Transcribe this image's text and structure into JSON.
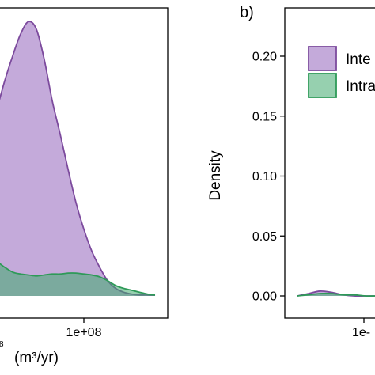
{
  "figure": {
    "panel_b_tag": "b)",
    "legend": {
      "entries": [
        {
          "label": "Inte",
          "color": "#a881c9"
        },
        {
          "label": "Intra",
          "color": "#3fa96e"
        }
      ]
    }
  },
  "chart_data": [
    {
      "type": "area",
      "panel": "a",
      "xlabel": "(m³/yr)",
      "ylabel": "",
      "x_tick_labels": [
        "1e+08"
      ],
      "x_tick_values": [
        100000000
      ],
      "xlim": [
        -30000000,
        210000000
      ],
      "ylim": [
        0,
        0.29
      ],
      "grid": false,
      "series": [
        {
          "name": "Inte",
          "color": "#a881c9",
          "x": [
            -30000000,
            -20000000,
            -10000000,
            0,
            10000000,
            20000000,
            30000000,
            40000000,
            50000000,
            60000000,
            70000000,
            80000000,
            90000000,
            100000000,
            110000000,
            120000000,
            130000000,
            140000000,
            150000000,
            160000000,
            170000000,
            180000000,
            190000000
          ],
          "values": [
            0.14,
            0.168,
            0.196,
            0.226,
            0.252,
            0.275,
            0.288,
            0.28,
            0.248,
            0.205,
            0.17,
            0.133,
            0.098,
            0.07,
            0.047,
            0.03,
            0.016,
            0.008,
            0.004,
            0.002,
            0.001,
            0.001,
            0.0
          ]
        },
        {
          "name": "Intra",
          "color": "#3fa96e",
          "x": [
            -30000000,
            -20000000,
            -10000000,
            0,
            10000000,
            20000000,
            30000000,
            40000000,
            50000000,
            60000000,
            70000000,
            80000000,
            90000000,
            100000000,
            110000000,
            120000000,
            130000000,
            140000000,
            150000000,
            160000000,
            170000000,
            180000000,
            190000000
          ],
          "values": [
            0.038,
            0.04,
            0.036,
            0.03,
            0.025,
            0.023,
            0.022,
            0.021,
            0.022,
            0.023,
            0.023,
            0.024,
            0.024,
            0.023,
            0.022,
            0.02,
            0.016,
            0.011,
            0.008,
            0.006,
            0.004,
            0.002,
            0.001
          ]
        }
      ]
    },
    {
      "type": "area",
      "panel": "b",
      "xlabel": "",
      "ylabel": "Density",
      "y_ticks": [
        0.0,
        0.05,
        0.1,
        0.15,
        0.2
      ],
      "y_tick_labels": [
        "0.00",
        "0.05",
        "0.10",
        "0.15",
        "0.20"
      ],
      "x_tick_labels": [
        "1e-"
      ],
      "ylim": [
        -0.01,
        0.25
      ],
      "grid": false,
      "legend_position": "top-right",
      "series": [
        {
          "name": "Inte",
          "color": "#a881c9",
          "x": [
            0,
            1,
            2,
            3,
            4,
            5,
            6,
            7,
            8
          ],
          "values": [
            0.0,
            0.002,
            0.004,
            0.003,
            0.001,
            0.0,
            0.0,
            0.0,
            0.0
          ]
        },
        {
          "name": "Intra",
          "color": "#3fa96e",
          "x": [
            0,
            1,
            2,
            3,
            4,
            5,
            6,
            7,
            8
          ],
          "values": [
            0.0,
            0.001,
            0.002,
            0.002,
            0.001,
            0.001,
            0.0,
            0.0,
            0.0
          ]
        }
      ]
    }
  ]
}
